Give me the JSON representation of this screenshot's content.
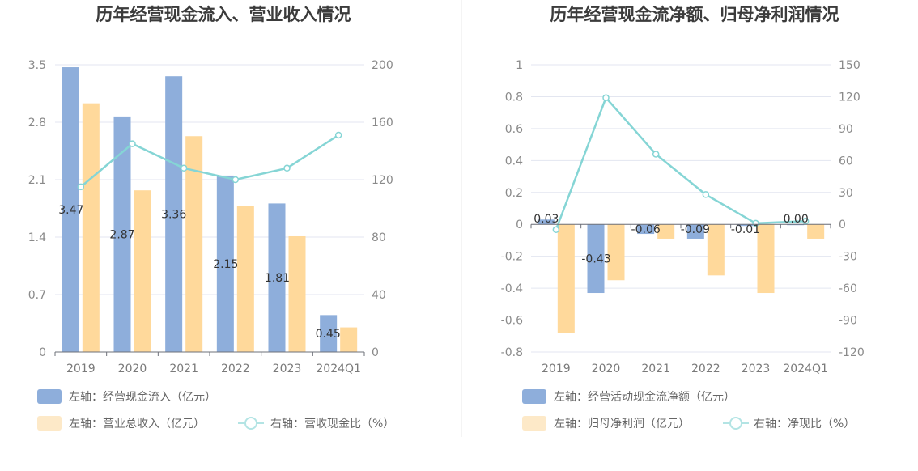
{
  "colors": {
    "inflow_bar": "#8eaedb",
    "revenue_bar": "#ffd99b",
    "ratio_line": "#85d5d5",
    "grid": "#e3e6f0",
    "axis": "#6e7079",
    "divider": "#e8e8e8"
  },
  "chart_data": [
    {
      "type": "bar",
      "title": "历年经营现金流入、营业收入情况",
      "categories": [
        "2019",
        "2020",
        "2021",
        "2022",
        "2023",
        "2024Q1"
      ],
      "left_axis": {
        "ylim": [
          0,
          3.5
        ],
        "ticks": [
          "0",
          "0.7",
          "1.4",
          "2.1",
          "2.8",
          "3.5"
        ]
      },
      "right_axis": {
        "ylim": [
          0,
          200
        ],
        "ticks": [
          "0",
          "40",
          "80",
          "120",
          "160",
          "200"
        ]
      },
      "series": [
        {
          "name": "左轴：经营现金流入（亿元）",
          "type": "bar",
          "axis": "left",
          "values": [
            3.47,
            2.87,
            3.36,
            2.15,
            1.81,
            0.45
          ],
          "labels": [
            "3.47",
            "2.87",
            "3.36",
            "2.15",
            "1.81",
            "0.45"
          ]
        },
        {
          "name": "左轴：营业总收入（亿元）",
          "type": "bar",
          "axis": "left",
          "values": [
            3.03,
            1.97,
            2.63,
            1.78,
            1.41,
            0.3
          ]
        },
        {
          "name": "右轴：营收现金比（%）",
          "type": "line",
          "axis": "right",
          "values": [
            115,
            145,
            128,
            120,
            128,
            151
          ]
        }
      ],
      "legend_placement": "bottom",
      "grid": true
    },
    {
      "type": "bar",
      "title": "历年经营现金流净额、归母净利润情况",
      "categories": [
        "2019",
        "2020",
        "2021",
        "2022",
        "2023",
        "2024Q1"
      ],
      "left_axis": {
        "ylim": [
          -0.8,
          1
        ],
        "ticks": [
          "-0.8",
          "-0.6",
          "-0.4",
          "-0.2",
          "0",
          "0.2",
          "0.4",
          "0.6",
          "0.8",
          "1"
        ]
      },
      "right_axis": {
        "ylim": [
          -120,
          150
        ],
        "ticks": [
          "-120",
          "-90",
          "-60",
          "-30",
          "0",
          "30",
          "60",
          "90",
          "120",
          "150"
        ]
      },
      "series": [
        {
          "name": "左轴：经营活动现金流净额（亿元）",
          "type": "bar",
          "axis": "left",
          "values": [
            0.03,
            -0.43,
            -0.06,
            -0.09,
            -0.01,
            0.0
          ],
          "labels": [
            "0.03",
            "-0.43",
            "-0.06",
            "-0.09",
            "-0.01",
            "0.00"
          ]
        },
        {
          "name": "左轴：归母净利润（亿元）",
          "type": "bar",
          "axis": "left",
          "values": [
            -0.68,
            -0.35,
            -0.09,
            -0.32,
            -0.43,
            -0.09
          ]
        },
        {
          "name": "右轴：净现比（%）",
          "type": "line",
          "axis": "right",
          "values": [
            -5,
            119,
            66,
            28,
            1,
            3
          ]
        }
      ],
      "legend_placement": "bottom",
      "grid": true
    }
  ]
}
